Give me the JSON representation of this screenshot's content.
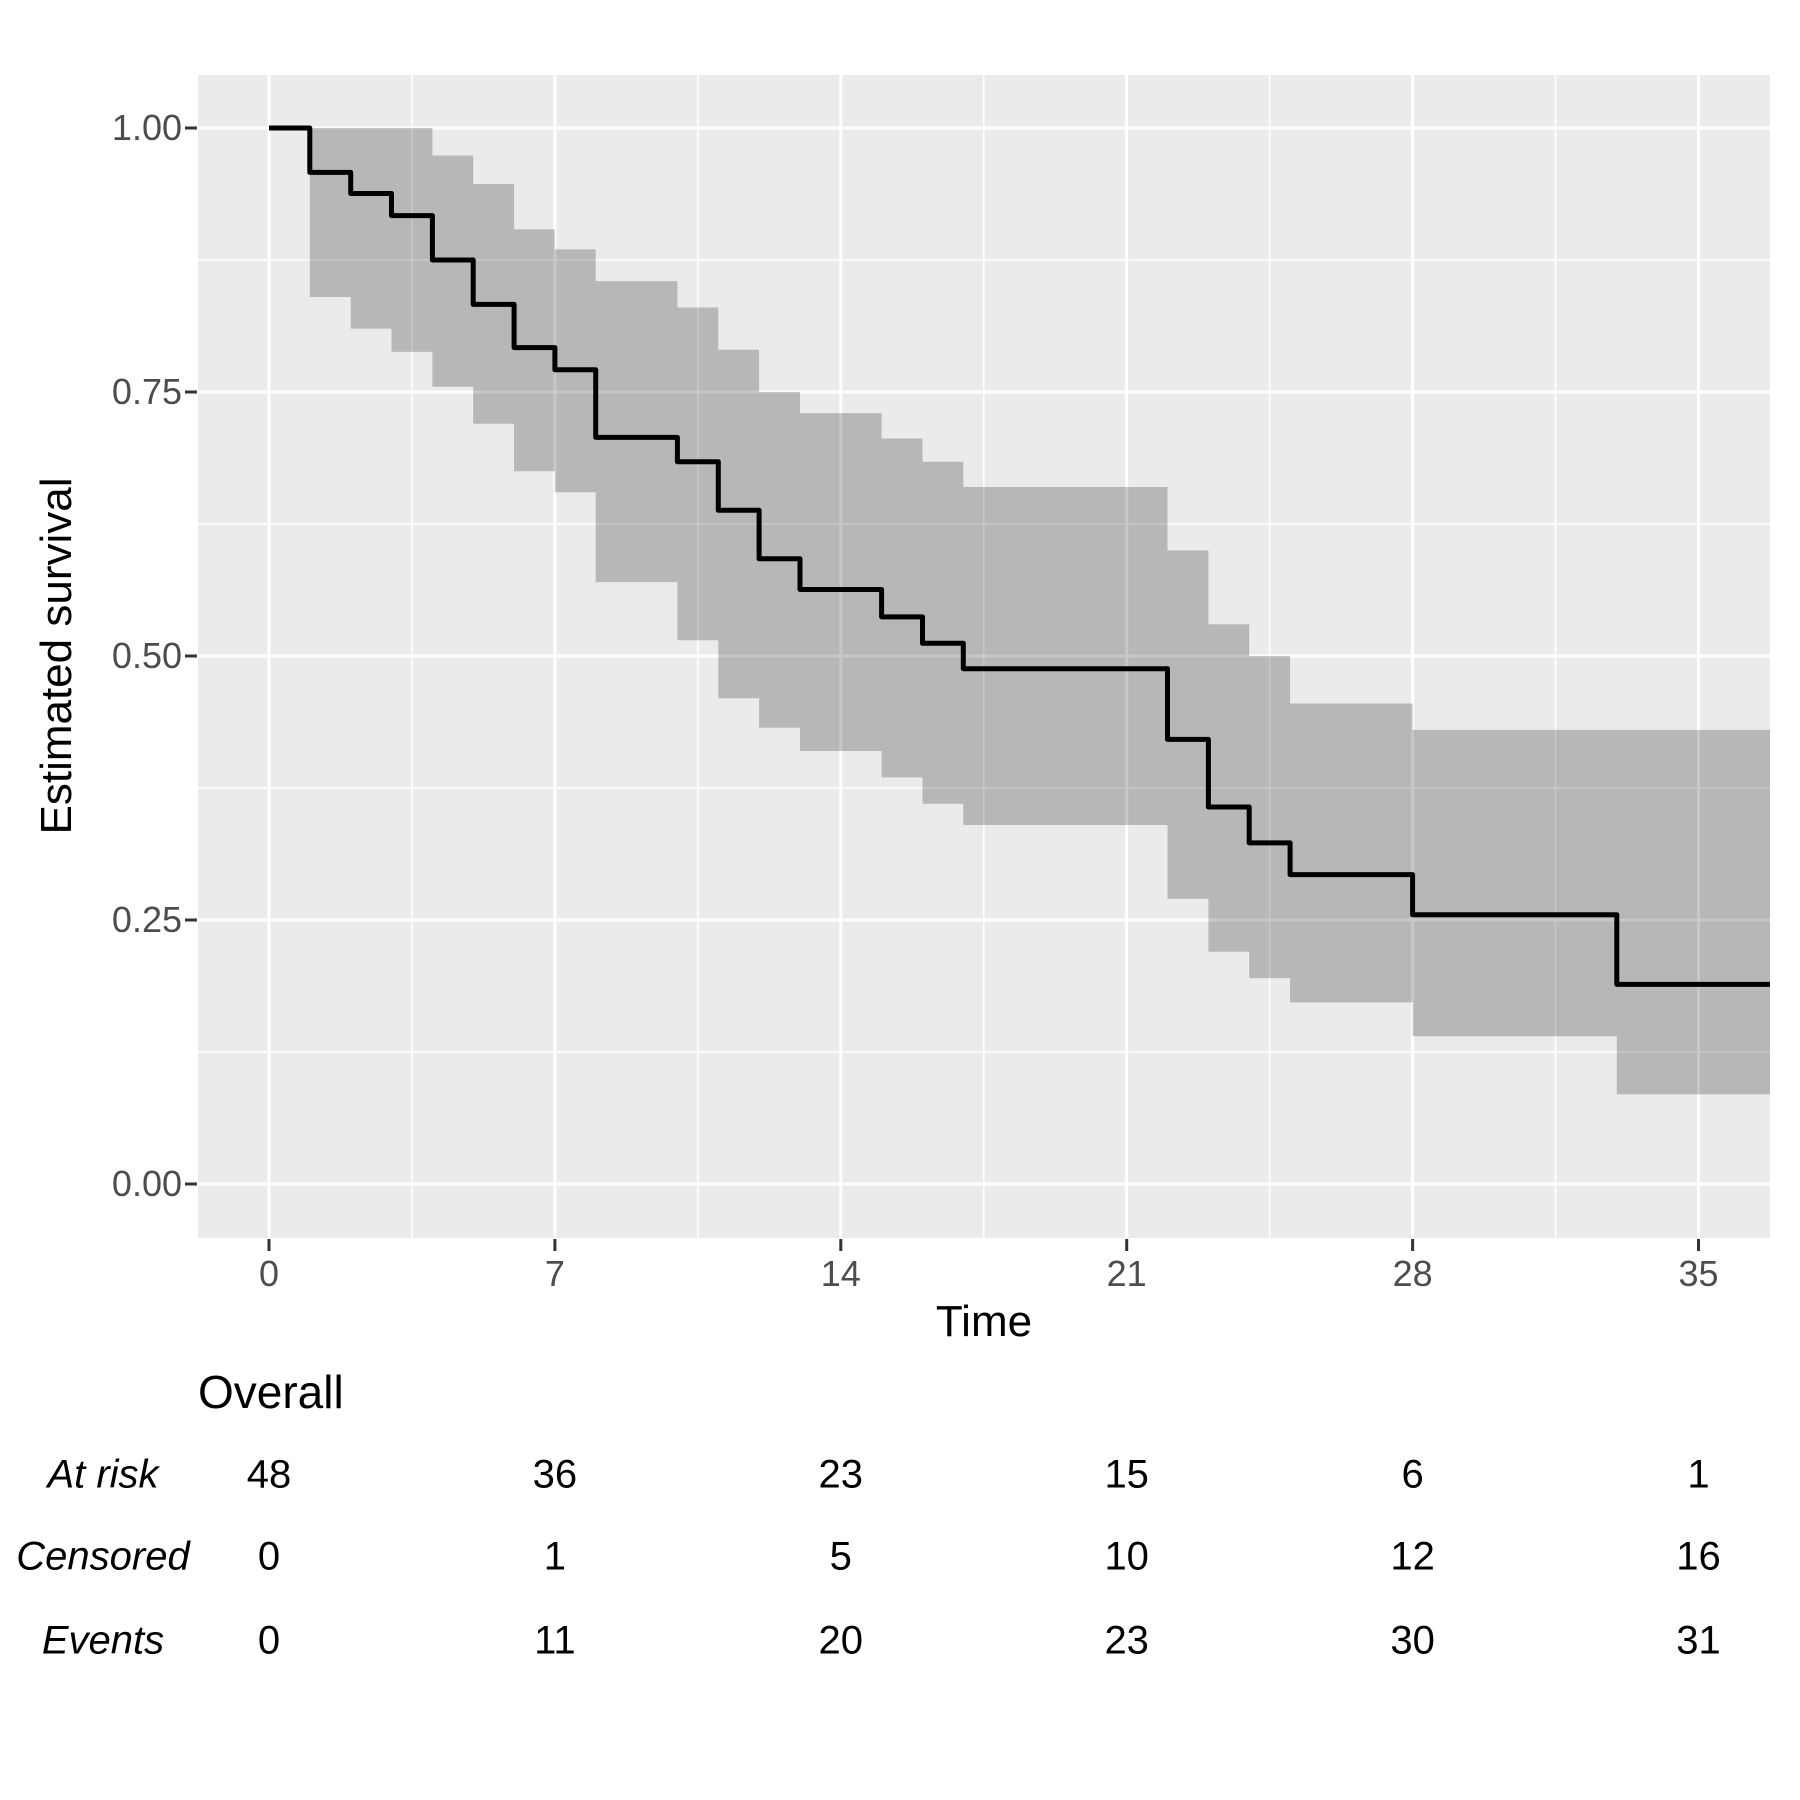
{
  "chart_data": {
    "type": "line",
    "subtype": "kaplan-meier-step-with-ci-ribbon",
    "title": "",
    "xlabel": "Time",
    "ylabel": "Estimated survival",
    "x_ticks": [
      0,
      7,
      14,
      21,
      28,
      35
    ],
    "x_minor_ticks": [
      3.5,
      10.5,
      17.5,
      24.5,
      31.5
    ],
    "y_ticks": [
      {
        "value": 1.0,
        "label": "1.00"
      },
      {
        "value": 0.75,
        "label": "0.75"
      },
      {
        "value": 0.5,
        "label": "0.50"
      },
      {
        "value": 0.25,
        "label": "0.25"
      },
      {
        "value": 0.0,
        "label": "0.00"
      }
    ],
    "y_minor_ticks": [
      0.875,
      0.625,
      0.375,
      0.125
    ],
    "xlim": [
      -1.75,
      36.75
    ],
    "ylim": [
      -0.05,
      1.05
    ],
    "grid": true,
    "legend": false,
    "survival_steps": [
      {
        "t": 0,
        "s": 1.0
      },
      {
        "t": 1,
        "s": 0.958
      },
      {
        "t": 2,
        "s": 0.938
      },
      {
        "t": 3,
        "s": 0.917
      },
      {
        "t": 4,
        "s": 0.875
      },
      {
        "t": 5,
        "s": 0.833
      },
      {
        "t": 6,
        "s": 0.792
      },
      {
        "t": 7,
        "s": 0.771
      },
      {
        "t": 8,
        "s": 0.707
      },
      {
        "t": 10,
        "s": 0.684
      },
      {
        "t": 11,
        "s": 0.638
      },
      {
        "t": 12,
        "s": 0.592
      },
      {
        "t": 13,
        "s": 0.563
      },
      {
        "t": 15,
        "s": 0.537
      },
      {
        "t": 16,
        "s": 0.512
      },
      {
        "t": 17,
        "s": 0.488
      },
      {
        "t": 22,
        "s": 0.421
      },
      {
        "t": 23,
        "s": 0.357
      },
      {
        "t": 24,
        "s": 0.323
      },
      {
        "t": 25,
        "s": 0.293
      },
      {
        "t": 28,
        "s": 0.255
      },
      {
        "t": 33,
        "s": 0.189
      },
      {
        "t": 36.75,
        "s": 0.189
      }
    ],
    "ci_ribbon_segments": [
      {
        "t0": 1,
        "t1": 2,
        "upper": 1.0,
        "lower": 0.84
      },
      {
        "t0": 2,
        "t1": 3,
        "upper": 1.0,
        "lower": 0.81
      },
      {
        "t0": 3,
        "t1": 4,
        "upper": 1.0,
        "lower": 0.788
      },
      {
        "t0": 4,
        "t1": 5,
        "upper": 0.974,
        "lower": 0.755
      },
      {
        "t0": 5,
        "t1": 6,
        "upper": 0.947,
        "lower": 0.72
      },
      {
        "t0": 6,
        "t1": 7,
        "upper": 0.904,
        "lower": 0.675
      },
      {
        "t0": 7,
        "t1": 8,
        "upper": 0.885,
        "lower": 0.655
      },
      {
        "t0": 8,
        "t1": 10,
        "upper": 0.855,
        "lower": 0.57
      },
      {
        "t0": 10,
        "t1": 11,
        "upper": 0.83,
        "lower": 0.515
      },
      {
        "t0": 11,
        "t1": 12,
        "upper": 0.79,
        "lower": 0.46
      },
      {
        "t0": 12,
        "t1": 13,
        "upper": 0.75,
        "lower": 0.432
      },
      {
        "t0": 13,
        "t1": 15,
        "upper": 0.73,
        "lower": 0.41
      },
      {
        "t0": 15,
        "t1": 16,
        "upper": 0.706,
        "lower": 0.385
      },
      {
        "t0": 16,
        "t1": 17,
        "upper": 0.684,
        "lower": 0.36
      },
      {
        "t0": 17,
        "t1": 22,
        "upper": 0.66,
        "lower": 0.34
      },
      {
        "t0": 22,
        "t1": 23,
        "upper": 0.6,
        "lower": 0.27
      },
      {
        "t0": 23,
        "t1": 24,
        "upper": 0.53,
        "lower": 0.22
      },
      {
        "t0": 24,
        "t1": 25,
        "upper": 0.5,
        "lower": 0.195
      },
      {
        "t0": 25,
        "t1": 28,
        "upper": 0.455,
        "lower": 0.172
      },
      {
        "t0": 28,
        "t1": 33,
        "upper": 0.43,
        "lower": 0.14
      },
      {
        "t0": 33,
        "t1": 36.75,
        "upper": 0.43,
        "lower": 0.085
      }
    ]
  },
  "risk_table": {
    "title": "Overall",
    "columns": [
      0,
      7,
      14,
      21,
      28,
      35
    ],
    "rows": [
      {
        "label": "At risk",
        "values": [
          "48",
          "36",
          "23",
          "15",
          "6",
          "1"
        ]
      },
      {
        "label": "Censored",
        "values": [
          "0",
          "1",
          "5",
          "10",
          "12",
          "16"
        ]
      },
      {
        "label": "Events",
        "values": [
          "0",
          "11",
          "20",
          "23",
          "30",
          "31"
        ]
      }
    ]
  },
  "colors": {
    "panel_background": "#EBEBEB",
    "gridline": "#FFFFFF",
    "ribbon": "rgba(0,0,0,0.22)",
    "step_line": "#000000",
    "tick_mark": "#333333",
    "tick_label": "#4D4D4D",
    "text": "#000000"
  }
}
